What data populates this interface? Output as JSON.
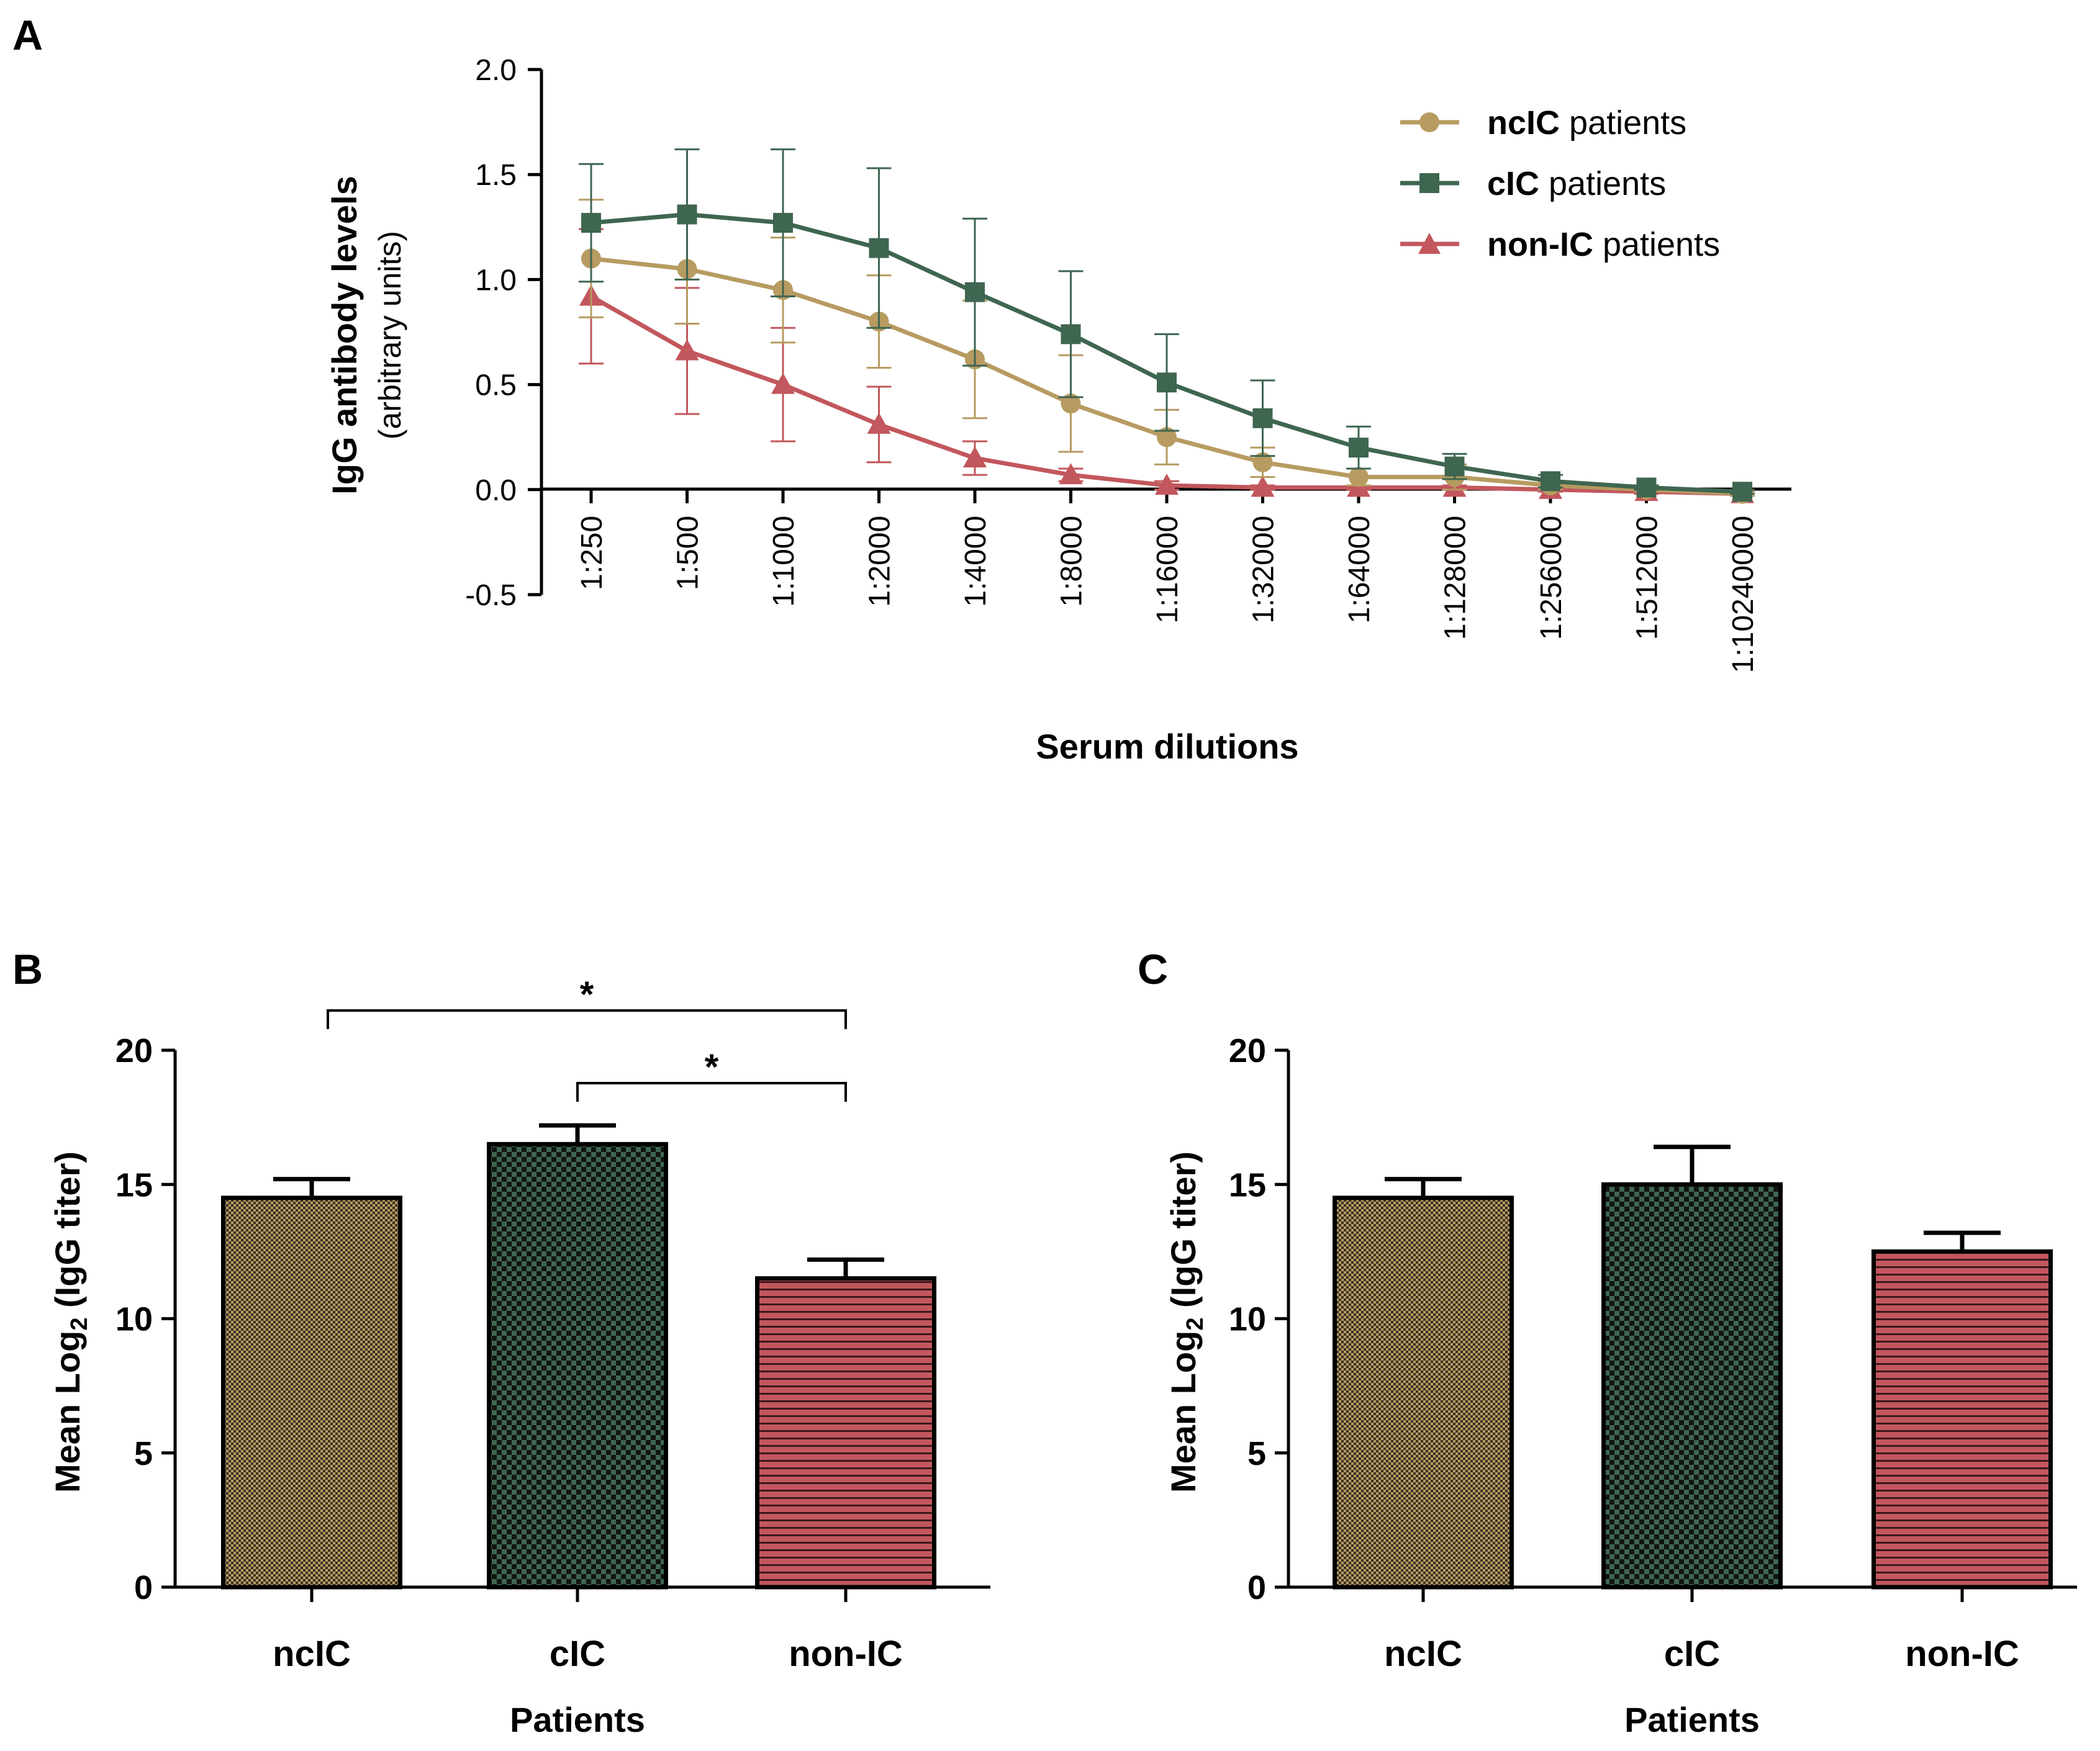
{
  "figure": {
    "panel_labels": [
      "A",
      "B",
      "C"
    ]
  },
  "chart_data": [
    {
      "id": "A",
      "type": "line",
      "xlabel": "Serum dilutions",
      "ylabel_line1": "IgG antibody levels",
      "ylabel_line2": "(arbitrary units)",
      "ylim": [
        -0.5,
        2.0
      ],
      "yticks": [
        "2.0",
        "1.5",
        "1.0",
        "0.5",
        "0.0",
        "-0.5"
      ],
      "ytick_values": [
        2.0,
        1.5,
        1.0,
        0.5,
        0.0,
        -0.5
      ],
      "categories": [
        "1:250",
        "1:500",
        "1:1000",
        "1:2000",
        "1:4000",
        "1:8000",
        "1:16000",
        "1:32000",
        "1:64000",
        "1:128000",
        "1:256000",
        "1:512000",
        "1:10240000"
      ],
      "legend_position": "top-right",
      "series": [
        {
          "name_bold": "ncIC",
          "name_rest": " patients",
          "color": "#b79b61",
          "marker": "circle",
          "values": [
            1.1,
            1.05,
            0.95,
            0.8,
            0.62,
            0.41,
            0.25,
            0.13,
            0.06,
            0.06,
            0.02,
            0.0,
            -0.02
          ],
          "errors": [
            0.28,
            0.26,
            0.25,
            0.22,
            0.28,
            0.23,
            0.13,
            0.07,
            0.04,
            0.06,
            0.02,
            0.01,
            0.01
          ]
        },
        {
          "name_bold": "cIC",
          "name_rest": " patients",
          "color": "#3f6651",
          "marker": "square",
          "values": [
            1.27,
            1.31,
            1.27,
            1.15,
            0.94,
            0.74,
            0.51,
            0.34,
            0.2,
            0.11,
            0.04,
            0.01,
            -0.01
          ],
          "errors": [
            0.28,
            0.31,
            0.35,
            0.38,
            0.35,
            0.3,
            0.23,
            0.18,
            0.1,
            0.06,
            0.03,
            0.01,
            0.01
          ]
        },
        {
          "name_bold": "non-IC",
          "name_rest": " patients",
          "color": "#c2575d",
          "marker": "triangle",
          "values": [
            0.92,
            0.66,
            0.5,
            0.31,
            0.15,
            0.07,
            0.02,
            0.01,
            0.01,
            0.01,
            0.0,
            -0.01,
            -0.02
          ],
          "errors": [
            0.32,
            0.3,
            0.27,
            0.18,
            0.08,
            0.03,
            0.02,
            0.01,
            0.01,
            0.01,
            0.01,
            0.01,
            0.01
          ]
        }
      ]
    },
    {
      "id": "B",
      "type": "bar",
      "xlabel": "Patients",
      "ylabel_prefix": "Mean Log",
      "ylabel_sub": "2",
      "ylabel_suffix": " (IgG  titer)",
      "ylim": [
        0,
        20
      ],
      "yticks": [
        "20",
        "15",
        "10",
        "5",
        "0"
      ],
      "ytick_values": [
        20,
        15,
        10,
        5,
        0
      ],
      "categories": [
        "ncIC",
        "cIC",
        "non-IC"
      ],
      "values": [
        14.5,
        16.5,
        11.5
      ],
      "errors": [
        0.7,
        0.7,
        0.7
      ],
      "fills": [
        "pattern-ncic",
        "pattern-cic",
        "pattern-nonic"
      ],
      "significance": [
        {
          "from": 0,
          "to": 2,
          "label": "*"
        },
        {
          "from": 1,
          "to": 2,
          "label": "*"
        }
      ]
    },
    {
      "id": "C",
      "type": "bar",
      "xlabel": "Patients",
      "ylabel_prefix": "Mean Log",
      "ylabel_sub": "2",
      "ylabel_suffix": " (IgG  titer)",
      "ylim": [
        0,
        20
      ],
      "yticks": [
        "20",
        "15",
        "10",
        "5",
        "0"
      ],
      "ytick_values": [
        20,
        15,
        10,
        5,
        0
      ],
      "categories": [
        "ncIC",
        "cIC",
        "non-IC"
      ],
      "values": [
        14.5,
        15.0,
        12.5
      ],
      "errors": [
        0.7,
        1.4,
        0.7
      ],
      "fills": [
        "pattern-ncic",
        "pattern-cic",
        "pattern-nonic"
      ]
    }
  ],
  "colors": {
    "ncic": "#b79b61",
    "cic": "#3f6651",
    "nonic": "#c2575d",
    "dark": "#1a1a1a"
  }
}
